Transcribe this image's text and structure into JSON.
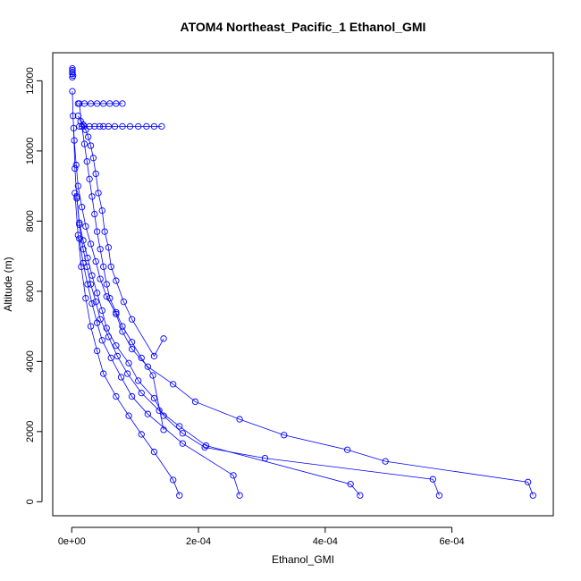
{
  "chart_data": {
    "type": "line",
    "title": "ATOM4 Northeast_Pacific_1 Ethanol_GMI",
    "xlabel": "Ethanol_GMI",
    "ylabel": "Altitude (m)",
    "xlim": [
      -3e-05,
      0.00076
    ],
    "ylim": [
      -400,
      12800
    ],
    "xticks": [
      0,
      0.0002,
      0.0004,
      0.0006
    ],
    "xtick_labels": [
      "0e+00",
      "2e-04",
      "4e-04",
      "6e-04"
    ],
    "yticks": [
      0,
      2000,
      4000,
      6000,
      8000,
      10000,
      12000
    ],
    "ytick_labels": [
      "0",
      "2000",
      "4000",
      "6000",
      "8000",
      "10000",
      "12000"
    ],
    "grid": false,
    "legend": "none",
    "color": "#0000ff",
    "marker": "open-circle",
    "series": [
      {
        "x": [
          0.000728,
          0.00072,
          0.000495,
          0.000435,
          0.000335,
          0.000265,
          0.000195,
          0.00016,
          0.00012,
          9.5e-05,
          8e-05,
          7e-05,
          5.5e-05,
          4.5e-05,
          3.8e-05,
          3e-05,
          2.2e-05,
          1.6e-05,
          1e-05,
          7e-06,
          4e-06,
          2e-06,
          1e-06
        ],
        "y": [
          180,
          560,
          1150,
          1480,
          1900,
          2350,
          2850,
          3350,
          3850,
          4350,
          4850,
          5350,
          5850,
          6350,
          6850,
          7350,
          7850,
          8400,
          9000,
          9600,
          10300,
          11000,
          11700
        ]
      },
      {
        "x": [
          0.00058,
          0.00057,
          0.000305,
          0.00021,
          0.000175,
          0.000145,
          0.00013,
          0.000105,
          9e-05,
          7e-05,
          5.5e-05,
          4.8e-05,
          4e-05,
          3.2e-05,
          2.5e-05,
          1.8e-05,
          1.2e-05,
          8e-06,
          5e-06,
          3e-06
        ],
        "y": [
          180,
          640,
          1240,
          1550,
          1950,
          2450,
          2950,
          3450,
          3950,
          4450,
          4950,
          5450,
          5950,
          6450,
          6950,
          7450,
          7950,
          8650,
          9500,
          10650
        ]
      },
      {
        "x": [
          0.000455,
          0.00044,
          0.000212,
          0.00017,
          0.000138,
          0.00011,
          8.8e-05,
          7.2e-05,
          5.8e-05,
          4.5e-05,
          3.8e-05,
          3e-05,
          2.4e-05,
          1.8e-05,
          1.2e-05,
          8e-06
        ],
        "y": [
          180,
          500,
          1600,
          2150,
          2600,
          3100,
          3650,
          4150,
          4700,
          5200,
          5700,
          6200,
          6700,
          7200,
          7900,
          8700
        ]
      },
      {
        "x": [
          0.000265,
          0.000255,
          0.000175,
          0.00012,
          9.5e-05,
          7.8e-05,
          6.2e-05,
          4.8e-05,
          4e-05,
          3.2e-05,
          2.5e-05,
          1.8e-05,
          1.2e-05
        ],
        "y": [
          180,
          750,
          1660,
          2500,
          3000,
          3550,
          4100,
          4600,
          5100,
          5650,
          6200,
          6800,
          7500
        ]
      },
      {
        "x": [
          0.00017,
          0.00016,
          0.00013,
          0.00011,
          9e-05,
          7e-05,
          5e-05,
          4e-05,
          3e-05,
          2.2e-05,
          1.5e-05,
          1e-05,
          5e-06
        ],
        "y": [
          180,
          620,
          1420,
          1920,
          2450,
          3000,
          3650,
          4300,
          5000,
          5800,
          6700,
          7600,
          8800
        ]
      },
      {
        "x": [
          0.000145,
          0.00013,
          9.5e-05,
          8.2e-05,
          7e-05,
          6.2e-05,
          5.8e-05,
          5.2e-05,
          4.8e-05,
          4.2e-05,
          3.8e-05,
          3.4e-05,
          3e-05,
          2.6e-05,
          2.2e-05,
          1.8e-05,
          1.4e-05,
          1e-05
        ],
        "y": [
          4650,
          4150,
          5200,
          5700,
          6300,
          6700,
          7250,
          7700,
          8300,
          8800,
          9350,
          9800,
          10150,
          10400,
          10600,
          10750,
          10850,
          11000
        ]
      },
      {
        "x": [
          0.000145,
          0.000128,
          0.00011,
          9.5e-05,
          8e-05,
          7e-05,
          6e-05,
          5.5e-05,
          5e-05,
          4.5e-05,
          4e-05,
          3.6e-05,
          3.2e-05,
          2.8e-05,
          2.4e-05,
          2e-05,
          1.6e-05,
          1.2e-05
        ],
        "y": [
          2050,
          3600,
          4100,
          4550,
          5000,
          5400,
          5800,
          6200,
          6700,
          7200,
          7700,
          8200,
          8700,
          9200,
          9700,
          10200,
          10700,
          11350
        ]
      },
      {
        "x": [
          1.2e-05,
          2e-05,
          2.8e-05,
          3.6e-05,
          4.4e-05,
          5e-05,
          5.8e-05,
          6.8e-05,
          8e-05,
          9.2e-05,
          0.000105,
          0.000118,
          0.00013,
          0.000142
        ],
        "y": [
          10700,
          10700,
          10700,
          10700,
          10700,
          10700,
          10700,
          10700,
          10700,
          10700,
          10700,
          10700,
          10700,
          10700
        ]
      },
      {
        "x": [
          1e-05,
          2e-05,
          3e-05,
          4e-05,
          5e-05,
          6e-05,
          7e-05,
          8e-05
        ],
        "y": [
          11350,
          11350,
          11350,
          11350,
          11350,
          11350,
          11350,
          11350
        ]
      },
      {
        "x": [
          1e-06,
          1e-06,
          1e-06,
          1e-06,
          2e-06,
          1e-06
        ],
        "y": [
          12350,
          12300,
          12250,
          12200,
          12150,
          12100
        ]
      }
    ]
  }
}
